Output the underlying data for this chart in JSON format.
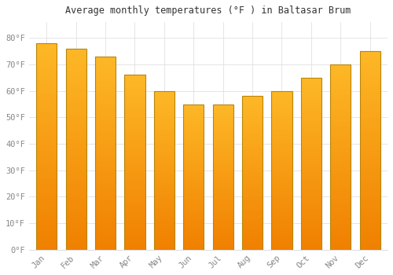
{
  "title": "Average monthly temperatures (°F ) in Baltasar Brum",
  "months": [
    "Jan",
    "Feb",
    "Mar",
    "Apr",
    "May",
    "Jun",
    "Jul",
    "Aug",
    "Sep",
    "Oct",
    "Nov",
    "Dec"
  ],
  "values": [
    78,
    76,
    73,
    66,
    60,
    55,
    55,
    58,
    60,
    65,
    70,
    75
  ],
  "bar_color_top": "#FDB827",
  "bar_color_bottom": "#F08000",
  "bar_edge_color": "#B8860B",
  "background_color": "#FFFFFF",
  "grid_color": "#E0E0E0",
  "text_color": "#888888",
  "title_color": "#333333",
  "ylim": [
    0,
    86
  ],
  "yticks": [
    0,
    10,
    20,
    30,
    40,
    50,
    60,
    70,
    80
  ],
  "ylabel_suffix": "°F",
  "bar_width": 0.7
}
